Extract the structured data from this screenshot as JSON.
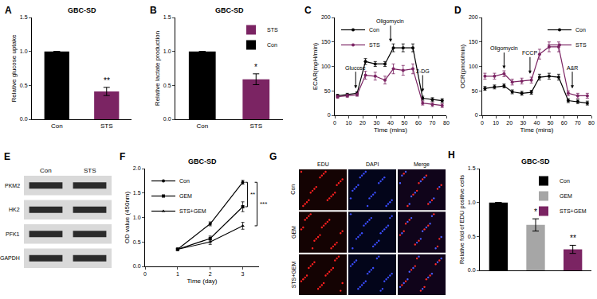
{
  "chart_data": [
    {
      "panel": "A",
      "type": "bar",
      "title": "GBC-SD",
      "y_label": "Relative glucose uptake",
      "categories": [
        "Con",
        "STS"
      ],
      "values": [
        1,
        0.41
      ],
      "errors": [
        0,
        0.06
      ],
      "colors": [
        "#000000",
        "#7b2463"
      ],
      "ylim": [
        0,
        1.5
      ],
      "yticks": [
        {
          "value": 0,
          "label": "0.0"
        },
        0.5,
        {
          "value": 1,
          "label": "1.0"
        },
        1.5
      ],
      "annotations": [
        {
          "text": "**",
          "x": "STS"
        }
      ]
    },
    {
      "panel": "B",
      "type": "bar",
      "title": "GBC-SD",
      "y_label": "Relative lactate production",
      "categories": [
        "Con",
        "STS"
      ],
      "series": [
        {
          "name": "Con",
          "color": "#000000",
          "values": [
            1,
            null
          ],
          "errors": [
            0,
            null
          ]
        },
        {
          "name": "STS",
          "color": "#7b2463",
          "values": [
            null,
            0.59
          ],
          "errors": [
            null,
            0.08
          ]
        }
      ],
      "ylim": [
        0,
        1.5
      ],
      "yticks": [
        {
          "value": 0,
          "label": "0.0"
        },
        0.5,
        {
          "value": 1,
          "label": "1.0"
        },
        1.5
      ],
      "legend": "top right",
      "annotations": [
        {
          "text": "*",
          "x": "STS"
        }
      ]
    },
    {
      "panel": "C",
      "type": "line",
      "x_label": "Time (mins)",
      "y_label": "ECAR(mpH/min)",
      "x": [
        2,
        9,
        16,
        22,
        29,
        36,
        42,
        49,
        56,
        63,
        70,
        77
      ],
      "series": [
        {
          "name": "Con",
          "color": "#000000",
          "marker": "circle",
          "values": [
            40,
            42,
            45,
            110,
            105,
            105,
            138,
            138,
            138,
            35,
            32,
            30
          ],
          "errors": [
            3,
            3,
            3,
            6,
            5,
            5,
            8,
            8,
            8,
            4,
            4,
            4
          ]
        },
        {
          "name": "STS",
          "color": "#7b2463",
          "marker": "circle",
          "values": [
            38,
            40,
            42,
            82,
            80,
            72,
            95,
            92,
            95,
            25,
            22,
            20
          ],
          "errors": [
            3,
            3,
            3,
            8,
            8,
            8,
            10,
            10,
            10,
            4,
            4,
            4
          ]
        }
      ],
      "xlim": [
        0,
        80
      ],
      "xticks": [
        0,
        10,
        20,
        30,
        40,
        50,
        60,
        70,
        80
      ],
      "ylim": [
        0,
        200
      ],
      "yticks": [
        0,
        50,
        100,
        150,
        200
      ],
      "legend": "top left",
      "annotations": [
        {
          "text": "Glucose",
          "x": 15,
          "y": 55
        },
        {
          "text": "Oligomycin",
          "x": 40,
          "y": 150
        },
        {
          "text": "2-DG",
          "x": 63,
          "y": 48
        }
      ]
    },
    {
      "panel": "D",
      "type": "line",
      "x_label": "Time (mins)",
      "y_label": "OCR(pmol/min)",
      "x": [
        2,
        9,
        16,
        22,
        29,
        36,
        42,
        49,
        56,
        63,
        70,
        77
      ],
      "series": [
        {
          "name": "Con",
          "color": "#000000",
          "marker": "circle",
          "values": [
            55,
            58,
            60,
            48,
            45,
            47,
            78,
            80,
            78,
            30,
            28,
            25
          ],
          "errors": [
            4,
            4,
            4,
            4,
            4,
            4,
            6,
            6,
            6,
            4,
            4,
            4
          ]
        },
        {
          "name": "STS",
          "color": "#7b2463",
          "marker": "circle",
          "values": [
            80,
            80,
            85,
            68,
            70,
            72,
            125,
            140,
            140,
            45,
            40,
            40
          ],
          "errors": [
            6,
            6,
            6,
            6,
            6,
            6,
            10,
            10,
            10,
            5,
            5,
            5
          ]
        }
      ],
      "xlim": [
        0,
        80
      ],
      "xticks": [
        0,
        10,
        20,
        30,
        40,
        50,
        60,
        70,
        80
      ],
      "ylim": [
        0,
        200
      ],
      "yticks": [
        0,
        50,
        100,
        150,
        200
      ],
      "legend": "top right",
      "annotations": [
        {
          "text": "Oligomycin",
          "x": 16,
          "y": 95
        },
        {
          "text": "FCCP",
          "x": 35,
          "y": 85
        },
        {
          "text": "A&R",
          "x": 66,
          "y": 55
        }
      ]
    },
    {
      "panel": "E",
      "type": "blot",
      "columns": [
        "Con",
        "STS"
      ],
      "rows": [
        "PKM2",
        "HK2",
        "PFK1",
        "GAPDH"
      ]
    },
    {
      "panel": "F",
      "type": "line",
      "title": "GBC-SD",
      "x_label": "Time (day)",
      "y_label": "OD value (450nm)",
      "x": [
        1,
        2,
        3
      ],
      "series": [
        {
          "name": "Con",
          "color": "#000000",
          "marker": "circle",
          "values": [
            0.35,
            0.87,
            1.72
          ],
          "errors": [
            0.02,
            0.04,
            0.04
          ]
        },
        {
          "name": "GEM",
          "color": "#000000",
          "marker": "square",
          "values": [
            0.35,
            0.57,
            1.22
          ],
          "errors": [
            0.02,
            0.05,
            0.1
          ]
        },
        {
          "name": "STS+GEM",
          "color": "#000000",
          "marker": "triangle-up",
          "values": [
            0.35,
            0.5,
            0.83
          ],
          "errors": [
            0.02,
            0.05,
            0.07
          ]
        }
      ],
      "xlim": [
        0,
        3.5
      ],
      "xticks": [
        0,
        1,
        2,
        3
      ],
      "ylim": [
        0,
        2
      ],
      "yticks": [
        {
          "value": 0,
          "label": "0.0"
        },
        0.5,
        {
          "value": 1,
          "label": "1.0"
        },
        1.5,
        {
          "value": 2,
          "label": "2.0"
        }
      ],
      "legend": "top left",
      "brackets": [
        {
          "text": "**",
          "x": 3,
          "between": [
            "Con",
            "GEM"
          ]
        },
        {
          "text": "***",
          "x": 3,
          "between": [
            "Con",
            "STS+GEM"
          ]
        }
      ]
    },
    {
      "panel": "G",
      "type": "image_grid",
      "columns": [
        "EDU",
        "DAPI",
        "Merge"
      ],
      "rows": [
        "Con",
        "GEM",
        "STS+GEM"
      ]
    },
    {
      "panel": "H",
      "type": "bar",
      "title": "GBC-SD",
      "y_label": "Relative fold of EDU positive cells",
      "categories": [
        "Con",
        "GEM",
        "STS+GEM"
      ],
      "series": [
        {
          "name": "Con",
          "color": "#000000",
          "values": [
            1,
            null,
            null
          ],
          "errors": [
            0,
            null,
            null
          ]
        },
        {
          "name": "GEM",
          "color": "#a6a6a6",
          "values": [
            null,
            0.67,
            null
          ],
          "errors": [
            null,
            0.09,
            null
          ]
        },
        {
          "name": "STS+GEM",
          "color": "#7b2463",
          "values": [
            null,
            null,
            0.31
          ],
          "errors": [
            null,
            null,
            0.06
          ]
        }
      ],
      "ylim": [
        0,
        1.5
      ],
      "yticks": [
        {
          "value": 0,
          "label": "0.0"
        },
        0.5,
        {
          "value": 1,
          "label": "1.0"
        },
        1.5
      ],
      "legend": "top right",
      "tick_labels": "y",
      "annotations": [
        {
          "text": "*",
          "x": "GEM"
        },
        {
          "text": "**",
          "x": "STS+GEM"
        }
      ]
    }
  ]
}
